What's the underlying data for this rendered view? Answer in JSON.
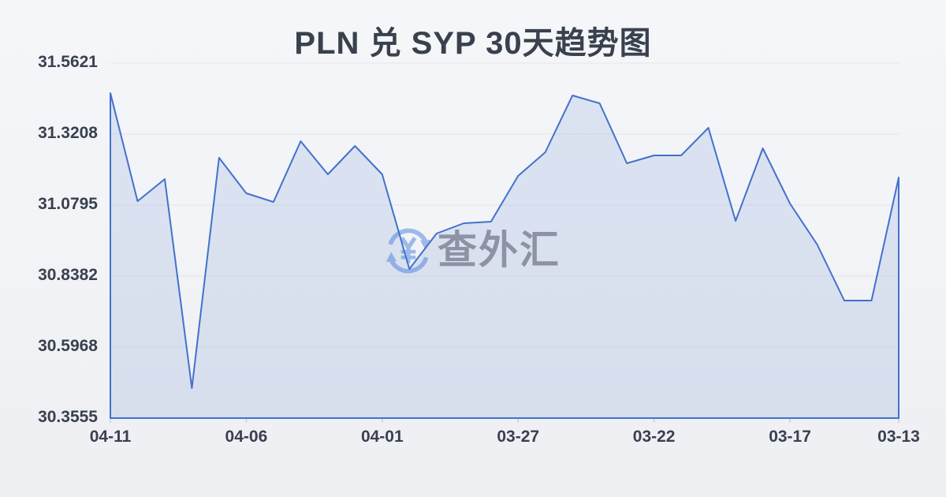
{
  "page": {
    "title": "PLN 兑 SYP 30天趋势图"
  },
  "watermark": {
    "text": "查外汇",
    "icon": "currency-exchange-icon",
    "icon_color": "#9db9ea",
    "text_color": "#97979e"
  },
  "chart_data": {
    "type": "area",
    "title": "PLN 兑 SYP 30天趋势图",
    "x": [
      "04-11",
      "04-10",
      "04-09",
      "04-08",
      "04-07",
      "04-06",
      "04-05",
      "04-04",
      "04-03",
      "04-02",
      "04-01",
      "03-31",
      "03-30",
      "03-29",
      "03-28",
      "03-27",
      "03-26",
      "03-25",
      "03-24",
      "03-23",
      "03-22",
      "03-21",
      "03-20",
      "03-19",
      "03-18",
      "03-17",
      "03-16",
      "03-15",
      "03-14",
      "03-13"
    ],
    "values": [
      31.4602,
      31.0929,
      31.1679,
      30.4575,
      31.2403,
      31.1197,
      31.0902,
      31.2967,
      31.184,
      31.2806,
      31.184,
      30.8623,
      30.9829,
      31.0178,
      31.0231,
      31.1786,
      31.2591,
      31.4522,
      31.4254,
      31.2216,
      31.2484,
      31.2484,
      31.3423,
      31.0258,
      31.2725,
      31.0848,
      30.9453,
      30.7549,
      30.7549,
      31.1733
    ],
    "x_tick_indices": [
      0,
      5,
      10,
      15,
      20,
      25,
      29
    ],
    "x_tick_labels": [
      "04-11",
      "04-06",
      "04-01",
      "03-27",
      "03-22",
      "03-17",
      "03-13"
    ],
    "y_ticks": [
      31.5621,
      31.3208,
      31.0795,
      30.8382,
      30.5968,
      30.3555
    ],
    "y_tick_labels": [
      "31.5621",
      "31.3208",
      "31.0795",
      "30.8382",
      "30.5968",
      "30.3555"
    ],
    "ylim": [
      30.3555,
      31.5621
    ],
    "grid": true,
    "legend": "none",
    "colors": {
      "line": "#4371cc",
      "fill": "rgba(93,130,205,0.16)",
      "grid": "#e4e6eb",
      "tick": "#cdd0d6",
      "label": "#39404e",
      "title": "#39404e"
    }
  }
}
